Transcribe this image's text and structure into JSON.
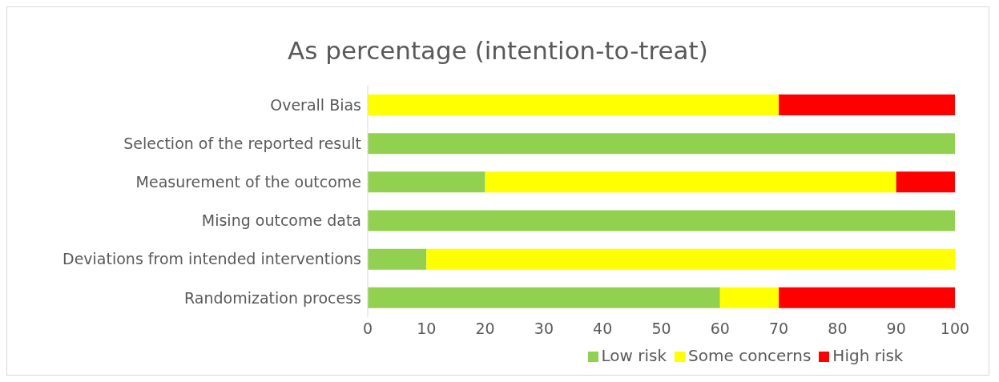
{
  "chart_data": {
    "type": "bar",
    "orientation": "horizontal",
    "stacked": true,
    "title": "As percentage (intention-to-treat)",
    "categories": [
      "Overall Bias",
      "Selection of the reported result",
      "Measurement of the outcome",
      "Mising outcome data",
      "Deviations from intended interventions",
      "Randomization process"
    ],
    "series": [
      {
        "name": "Low risk",
        "color": "#92d050",
        "values": [
          0,
          100,
          20,
          100,
          10,
          60
        ]
      },
      {
        "name": "Some concerns",
        "color": "#ffff00",
        "values": [
          70,
          0,
          70,
          0,
          90,
          10
        ]
      },
      {
        "name": "High risk",
        "color": "#ff0000",
        "values": [
          30,
          0,
          10,
          0,
          0,
          30
        ]
      }
    ],
    "xlim": [
      0,
      100
    ],
    "xticks": [
      0,
      10,
      20,
      30,
      40,
      50,
      60,
      70,
      80,
      90,
      100
    ],
    "grid": false,
    "legend": "bottom"
  }
}
